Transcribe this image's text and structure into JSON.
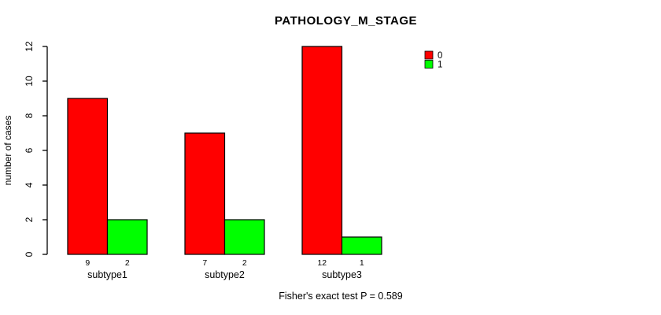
{
  "chart_data": {
    "type": "bar",
    "title": "PATHOLOGY_M_STAGE",
    "ylabel": "number of cases",
    "xlabel": "",
    "categories": [
      "subtype1",
      "subtype2",
      "subtype3"
    ],
    "series": [
      {
        "name": "0",
        "color": "#ff0000",
        "values": [
          9,
          7,
          12
        ]
      },
      {
        "name": "1",
        "color": "#00ff00",
        "values": [
          2,
          2,
          1
        ]
      }
    ],
    "bar_count_labels": [
      [
        "9",
        "2"
      ],
      [
        "7",
        "2"
      ],
      [
        "12",
        "1"
      ]
    ],
    "ylim": [
      0,
      12
    ],
    "yticks": [
      0,
      2,
      4,
      6,
      8,
      10,
      12
    ],
    "grid": false,
    "legend_position": "right-inside",
    "axis_color": "#000000",
    "bar_border_color": "#000000",
    "annotation": "Fisher's exact test P = 0.589"
  }
}
